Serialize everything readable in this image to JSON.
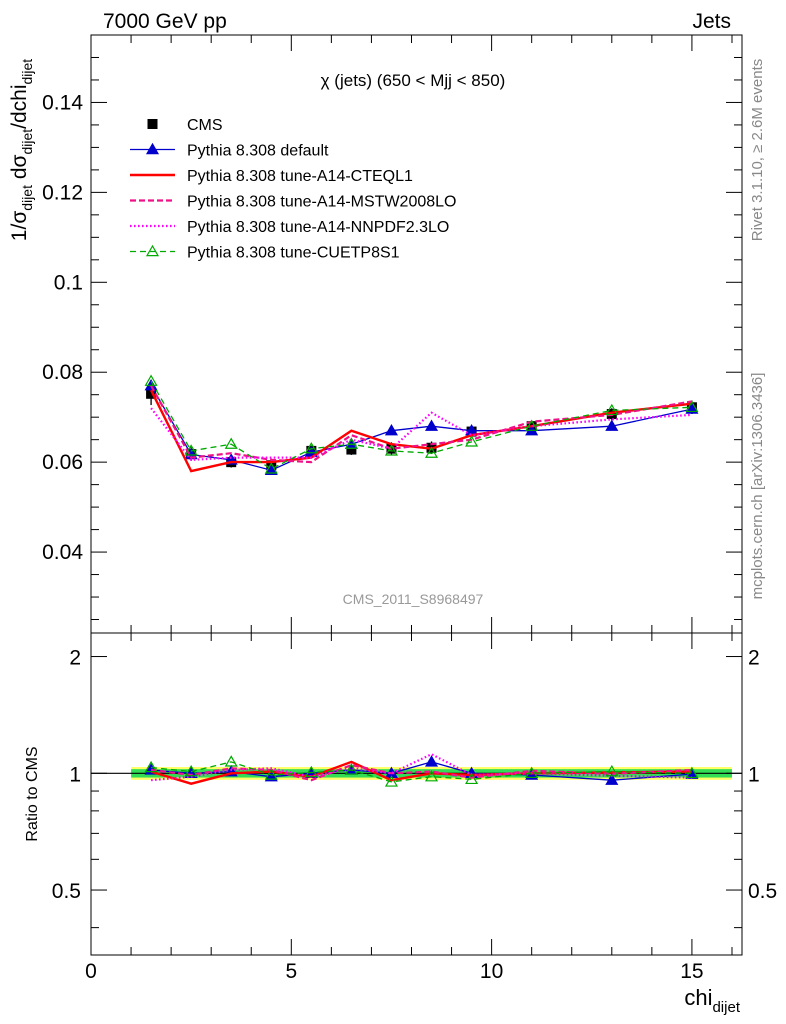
{
  "header": {
    "left": "7000 GeV pp",
    "right": "Jets"
  },
  "side": {
    "rivet": "Rivet 3.1.10, ≥ 2.6M events",
    "mcplots": "mcplots.cern.ch [arXiv:1306.3436]"
  },
  "watermark": "CMS_2011_S8968497",
  "colors": {
    "cms": "#000000",
    "default": "#0000cc",
    "cteql1": "#ff0000",
    "mstw": "#ee1188",
    "nnpdf": "#ff00ff",
    "cuetp8s1": "#00aa00",
    "band_inner": "#33dd55",
    "band_outer": "#ffff66"
  },
  "chart_data": [
    {
      "type": "line",
      "title": "χ (jets) (650 < Mjj <  850)",
      "ylabel": "1/σ_dijet dσ_dijet/dchi_dijet",
      "xlim": [
        0,
        16.25
      ],
      "ylim": [
        0.022,
        0.155
      ],
      "x_ticks": [
        0,
        5,
        10,
        15
      ],
      "y_ticks": [
        "0.04",
        "0.06",
        "0.08",
        "0.1",
        "0.12",
        "0.14"
      ],
      "legend_position": "top-left",
      "x": [
        1.5,
        2.5,
        3.5,
        4.5,
        5.5,
        6.5,
        7.5,
        8.5,
        9.5,
        11,
        13,
        15
      ],
      "series": [
        {
          "name": "CMS",
          "key": "cms",
          "style": "points",
          "values": [
            0.0752,
            0.0618,
            0.06,
            0.0593,
            0.0625,
            0.0628,
            0.063,
            0.0632,
            0.0668,
            0.068,
            0.0707,
            0.0722
          ],
          "errors": [
            0.0025,
            0.0015,
            0.0012,
            0.0015,
            0.0012,
            0.0012,
            0.0014,
            0.0014,
            0.0013,
            0.0012,
            0.0013,
            0.0015
          ]
        },
        {
          "name": "Pythia 8.308 default",
          "key": "default",
          "style": "solid-triangle",
          "values": [
            0.077,
            0.0617,
            0.0605,
            0.0582,
            0.0622,
            0.064,
            0.067,
            0.068,
            0.067,
            0.067,
            0.068,
            0.0718
          ]
        },
        {
          "name": "Pythia 8.308 tune-A14-CTEQL1",
          "key": "cteql1",
          "style": "solid-thick",
          "values": [
            0.076,
            0.058,
            0.06,
            0.06,
            0.061,
            0.067,
            0.064,
            0.063,
            0.066,
            0.068,
            0.071,
            0.073
          ]
        },
        {
          "name": "Pythia 8.308 tune-A14-MSTW2008LO",
          "key": "mstw",
          "style": "dashed",
          "values": [
            0.077,
            0.061,
            0.062,
            0.0605,
            0.06,
            0.066,
            0.063,
            0.064,
            0.065,
            0.069,
            0.0705,
            0.0735
          ]
        },
        {
          "name": "Pythia 8.308 tune-A14-NNPDF2.3LO",
          "key": "nnpdf",
          "style": "dotted",
          "values": [
            0.072,
            0.0605,
            0.061,
            0.061,
            0.061,
            0.065,
            0.063,
            0.071,
            0.066,
            0.068,
            0.0695,
            0.0705
          ]
        },
        {
          "name": "Pythia 8.308 tune-CUETP8S1",
          "key": "cuetp8s1",
          "style": "dashed-open-triangle",
          "values": [
            0.078,
            0.0625,
            0.064,
            0.0585,
            0.063,
            0.064,
            0.0625,
            0.062,
            0.0645,
            0.068,
            0.0715,
            0.0722
          ]
        }
      ]
    },
    {
      "type": "line",
      "title": "",
      "ylabel": "Ratio to CMS",
      "xlabel": "chi_dijet",
      "xlim": [
        0,
        16.25
      ],
      "ylim": [
        0.34,
        2.3
      ],
      "y_scale": "log",
      "x_ticks": [
        0,
        5,
        10,
        15
      ],
      "y_ticks": [
        "0.5",
        "1",
        "2"
      ],
      "x": [
        1.5,
        2.5,
        3.5,
        4.5,
        5.5,
        6.5,
        7.5,
        8.5,
        9.5,
        11,
        13,
        15
      ],
      "band_x": [
        1,
        16
      ],
      "band_inner": [
        0.975,
        1.025
      ],
      "band_outer": [
        0.962,
        1.038
      ],
      "series": [
        {
          "name": "Pythia 8.308 default",
          "key": "default",
          "style": "solid-triangle",
          "values": [
            1.02,
            1.0,
            1.01,
            0.98,
            1.0,
            1.02,
            1.0,
            1.07,
            1.0,
            0.99,
            0.96,
            0.995
          ]
        },
        {
          "name": "Pythia 8.308 tune-A14-CTEQL1",
          "key": "cteql1",
          "style": "solid-thick",
          "values": [
            1.01,
            0.94,
            1.0,
            1.01,
            0.98,
            1.07,
            0.96,
            1.0,
            0.99,
            1.0,
            1.005,
            1.01
          ]
        },
        {
          "name": "Pythia 8.308 tune-A14-MSTW2008LO",
          "key": "mstw",
          "style": "dashed",
          "values": [
            1.02,
            0.99,
            1.03,
            1.02,
            0.96,
            1.05,
            1.0,
            1.01,
            0.975,
            1.015,
            0.997,
            1.02
          ]
        },
        {
          "name": "Pythia 8.308 tune-A14-NNPDF2.3LO",
          "key": "nnpdf",
          "style": "dotted",
          "values": [
            0.96,
            0.98,
            1.02,
            1.03,
            0.98,
            1.03,
            1.0,
            1.12,
            0.99,
            1.0,
            0.985,
            0.975
          ]
        },
        {
          "name": "Pythia 8.308 tune-CUETP8S1",
          "key": "cuetp8s1",
          "style": "dashed-open-triangle",
          "values": [
            1.035,
            1.01,
            1.07,
            0.99,
            1.005,
            1.02,
            0.95,
            0.98,
            0.965,
            1.0,
            1.01,
            1.0
          ]
        }
      ]
    }
  ]
}
